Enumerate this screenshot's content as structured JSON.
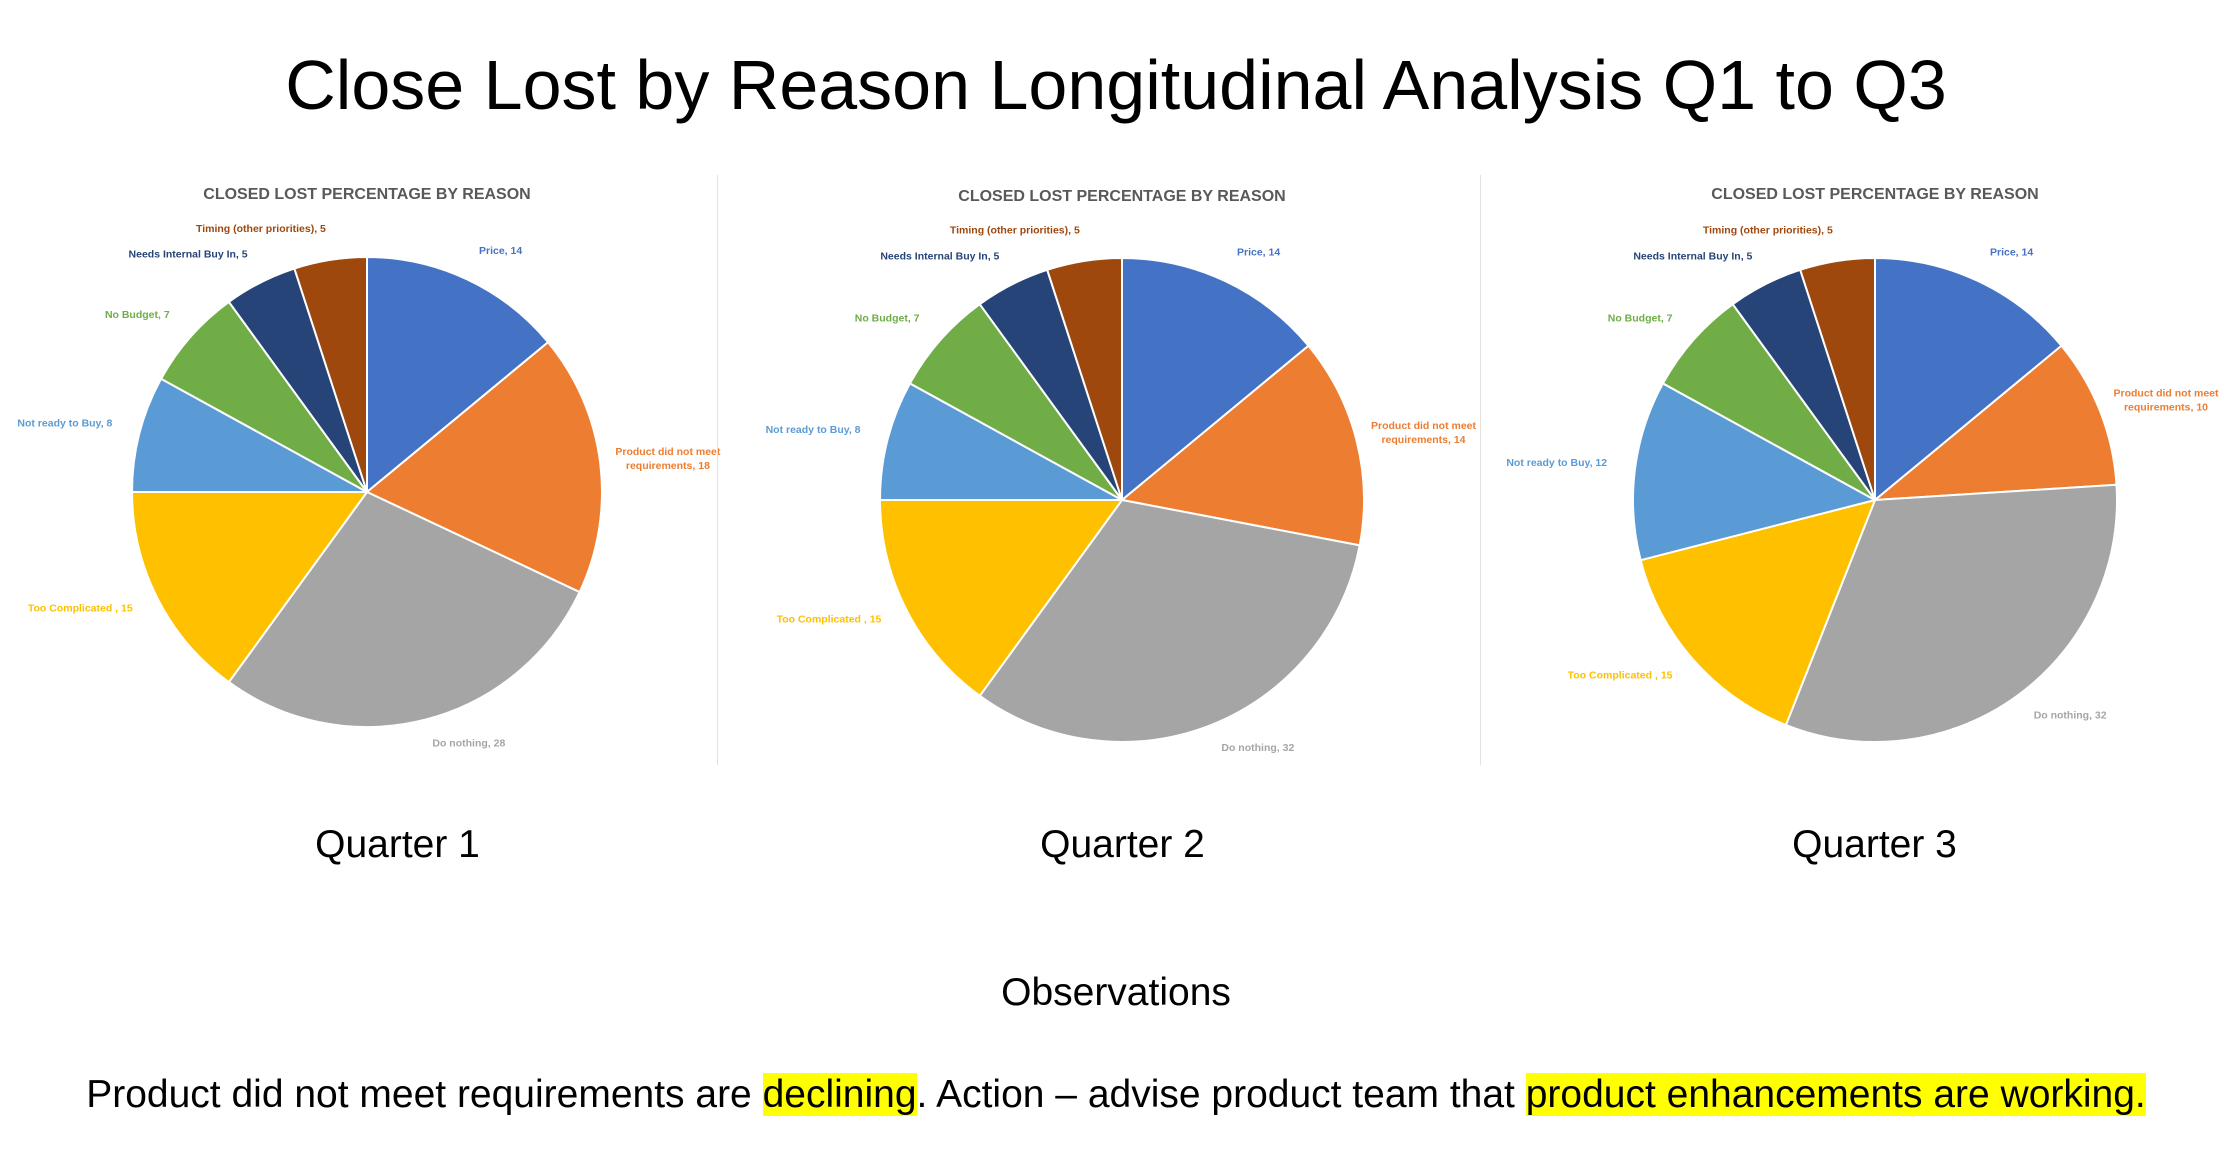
{
  "slide": {
    "title": "Close Lost by Reason Longitudinal Analysis Q1 to Q3",
    "observations_heading": "Observations",
    "observation": {
      "part1": "Product did not meet requirements are ",
      "highlight1": "declining",
      "part2": ". Action – advise product team that ",
      "highlight2": "product enhancements are working.",
      "highlight_color": "#ffff00"
    }
  },
  "quarters": [
    "Quarter 1",
    "Quarter 2",
    "Quarter 3"
  ],
  "chart_data": [
    {
      "type": "pie",
      "title": "CLOSED LOST PERCENTAGE BY REASON",
      "categories": [
        "Price",
        "Product did not meet requirements",
        "Do nothing",
        "Too Complicated ",
        "Not ready to Buy",
        "No Budget",
        "Needs Internal Buy In",
        "Timing (other priorities)"
      ],
      "values": [
        14,
        18,
        28,
        15,
        8,
        7,
        5,
        5
      ],
      "labels": [
        "Price, 14",
        "Product did not meet requirements, 18",
        "Do nothing, 28",
        "Too Complicated , 15",
        "Not ready to Buy, 8",
        "No Budget, 7",
        "Needs Internal Buy In, 5",
        "Timing (other priorities), 5"
      ],
      "colors": [
        "#4472C4",
        "#ED7D31",
        "#A5A5A5",
        "#FFC000",
        "#5B9BD5",
        "#70AD47",
        "#264478",
        "#9E480E"
      ]
    },
    {
      "type": "pie",
      "title": "CLOSED LOST PERCENTAGE BY REASON",
      "categories": [
        "Price",
        "Product did not meet requirements",
        "Do nothing",
        "Too Complicated ",
        "Not ready to Buy",
        "No Budget",
        "Needs Internal Buy In",
        "Timing (other priorities)"
      ],
      "values": [
        14,
        14,
        32,
        15,
        8,
        7,
        5,
        5
      ],
      "labels": [
        "Price, 14",
        "Product did not meet requirements, 14",
        "Do nothing, 32",
        "Too Complicated , 15",
        "Not ready to Buy, 8",
        "No Budget, 7",
        "Needs Internal Buy In, 5",
        "Timing (other priorities), 5"
      ],
      "colors": [
        "#4472C4",
        "#ED7D31",
        "#A5A5A5",
        "#FFC000",
        "#5B9BD5",
        "#70AD47",
        "#264478",
        "#9E480E"
      ]
    },
    {
      "type": "pie",
      "title": "CLOSED LOST PERCENTAGE BY REASON",
      "categories": [
        "Price",
        "Product did not meet requirements",
        "Do nothing",
        "Too Complicated ",
        "Not ready to Buy",
        "No Budget",
        "Needs Internal Buy In",
        "Timing (other priorities)"
      ],
      "values": [
        14,
        10,
        32,
        15,
        12,
        7,
        5,
        5
      ],
      "labels": [
        "Price, 14",
        "Product did not meet requirements, 10",
        "Do nothing, 32",
        "Too Complicated , 15",
        "Not ready to Buy, 12",
        "No Budget, 7",
        "Needs Internal Buy In, 5",
        "Timing (other priorities), 5"
      ],
      "colors": [
        "#4472C4",
        "#ED7D31",
        "#A5A5A5",
        "#FFC000",
        "#5B9BD5",
        "#70AD47",
        "#264478",
        "#9E480E"
      ]
    }
  ]
}
